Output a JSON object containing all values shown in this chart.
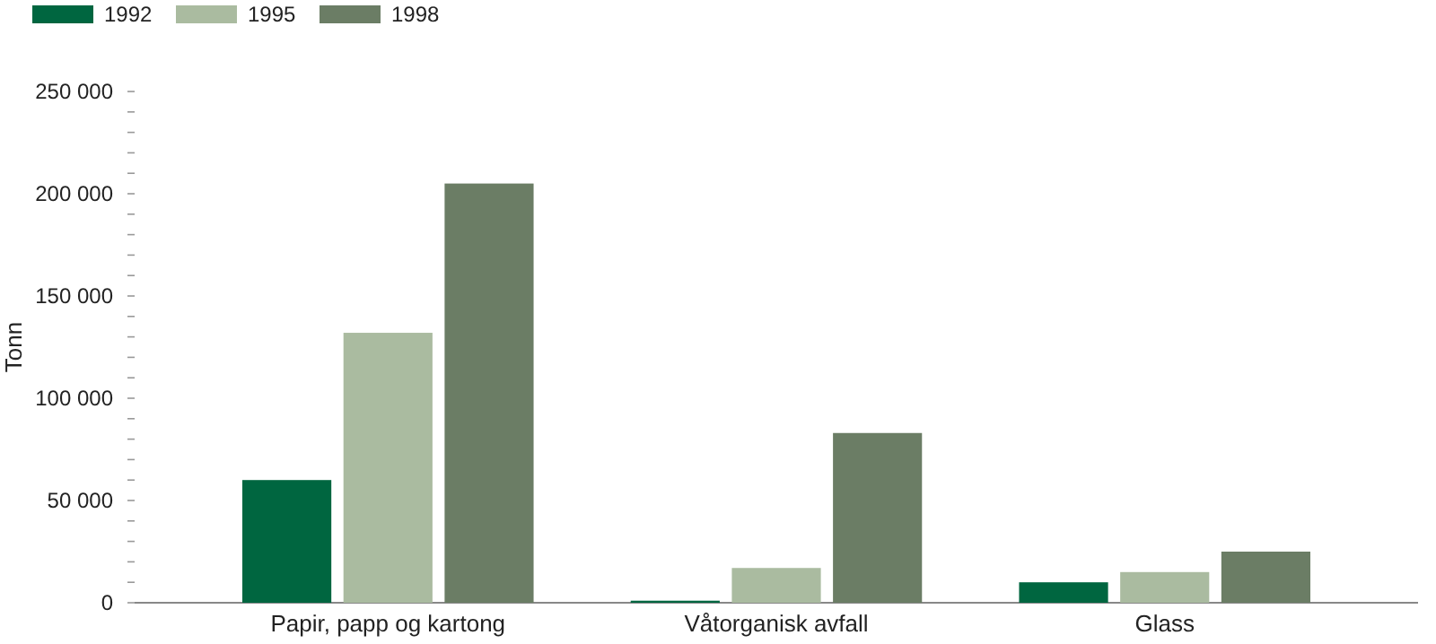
{
  "chart_data": {
    "type": "bar",
    "ylabel": "Tonn",
    "categories": [
      "Papir, papp og kartong",
      "Våtorganisk avfall",
      "Glass"
    ],
    "series": [
      {
        "name": "1992",
        "color": "#006640",
        "values": [
          60000,
          1000,
          10000
        ]
      },
      {
        "name": "1995",
        "color": "#aabba0",
        "values": [
          132000,
          17000,
          15000
        ]
      },
      {
        "name": "1998",
        "color": "#6b7d65",
        "values": [
          205000,
          83000,
          25000
        ]
      }
    ],
    "ylim": [
      0,
      250000
    ],
    "yticks": [
      {
        "value": 0,
        "label": "0"
      },
      {
        "value": 10000,
        "label": null
      },
      {
        "value": 20000,
        "label": null
      },
      {
        "value": 30000,
        "label": null
      },
      {
        "value": 40000,
        "label": null
      },
      {
        "value": 50000,
        "label": "50 000"
      },
      {
        "value": 60000,
        "label": null
      },
      {
        "value": 70000,
        "label": null
      },
      {
        "value": 80000,
        "label": null
      },
      {
        "value": 90000,
        "label": null
      },
      {
        "value": 100000,
        "label": "100 000"
      },
      {
        "value": 110000,
        "label": null
      },
      {
        "value": 120000,
        "label": null
      },
      {
        "value": 130000,
        "label": null
      },
      {
        "value": 140000,
        "label": null
      },
      {
        "value": 150000,
        "label": "150 000"
      },
      {
        "value": 160000,
        "label": null
      },
      {
        "value": 170000,
        "label": null
      },
      {
        "value": 180000,
        "label": null
      },
      {
        "value": 190000,
        "label": null
      },
      {
        "value": 200000,
        "label": "200 000"
      },
      {
        "value": 210000,
        "label": null
      },
      {
        "value": 220000,
        "label": null
      },
      {
        "value": 230000,
        "label": null
      },
      {
        "value": 240000,
        "label": null
      },
      {
        "value": 250000,
        "label": "250 000"
      }
    ],
    "legend": "top left",
    "grid": false
  }
}
